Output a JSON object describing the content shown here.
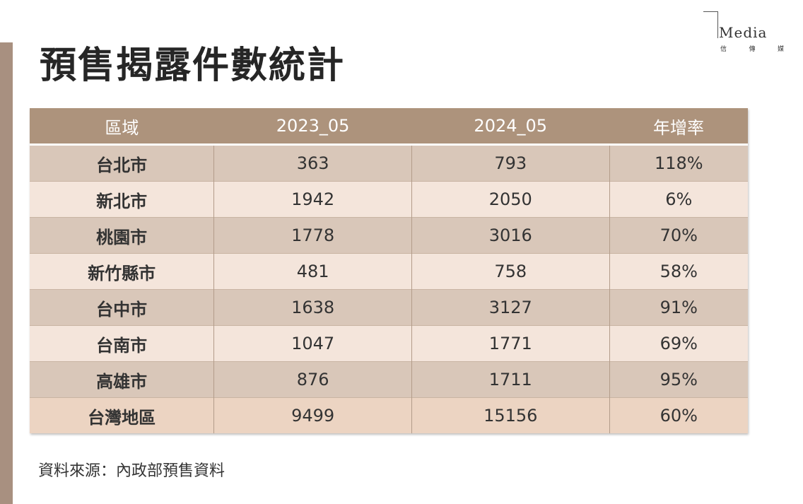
{
  "title": "預售揭露件數統計",
  "logo": {
    "word": "Media",
    "sub": [
      "信",
      "傳",
      "媒"
    ]
  },
  "table": {
    "headers": [
      "區域",
      "2023_05",
      "2024_05",
      "年增率"
    ],
    "rows": [
      [
        "台北市",
        "363",
        "793",
        "118%"
      ],
      [
        "新北市",
        "1942",
        "2050",
        "6%"
      ],
      [
        "桃園市",
        "1778",
        "3016",
        "70%"
      ],
      [
        "新竹縣市",
        "481",
        "758",
        "58%"
      ],
      [
        "台中市",
        "1638",
        "3127",
        "91%"
      ],
      [
        "台南市",
        "1047",
        "1771",
        "69%"
      ],
      [
        "高雄市",
        "876",
        "1711",
        "95%"
      ],
      [
        "台灣地區",
        "9499",
        "15156",
        "60%"
      ]
    ]
  },
  "source": "資料來源：內政部預售資料"
}
